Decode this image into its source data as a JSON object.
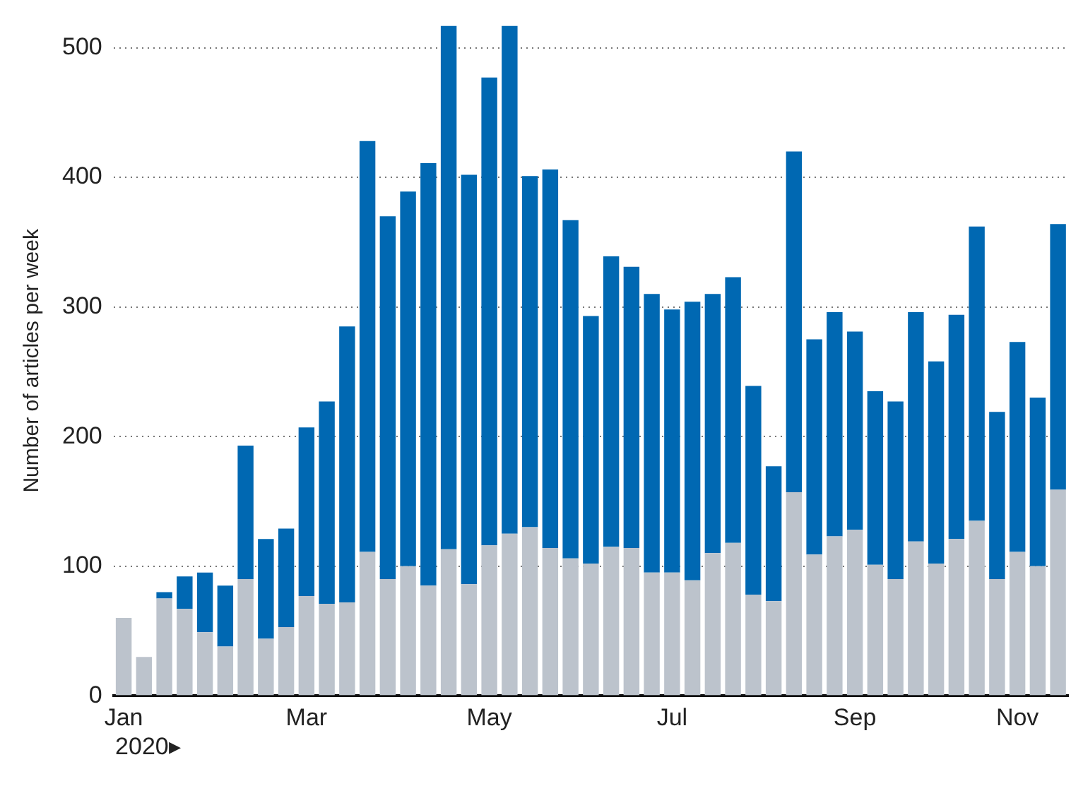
{
  "chart_data": {
    "type": "bar",
    "stacked": true,
    "ylabel": "Number of articles per week",
    "categories": [
      "Jan",
      null,
      null,
      null,
      null,
      null,
      null,
      null,
      null,
      "Mar",
      null,
      null,
      null,
      null,
      null,
      null,
      null,
      null,
      "May",
      null,
      null,
      null,
      null,
      null,
      null,
      null,
      null,
      "Jul",
      null,
      null,
      null,
      null,
      null,
      null,
      null,
      null,
      "Sep",
      null,
      null,
      null,
      null,
      null,
      null,
      null,
      "Nov",
      null,
      null
    ],
    "series": [
      {
        "color": "#bcc3cc",
        "values": [
          60,
          30,
          75,
          67,
          49,
          38,
          90,
          44,
          53,
          77,
          71,
          72,
          111,
          90,
          100,
          85,
          113,
          86,
          116,
          125,
          130,
          114,
          106,
          102,
          115,
          114,
          95,
          95,
          89,
          110,
          118,
          78,
          73,
          157,
          109,
          123,
          128,
          101,
          90,
          119,
          102,
          121,
          135,
          90,
          111,
          100,
          159
        ]
      },
      {
        "color": "#0068b2",
        "values": [
          0,
          0,
          5,
          25,
          46,
          47,
          103,
          77,
          76,
          130,
          156,
          213,
          317,
          280,
          289,
          326,
          404,
          316,
          361,
          392,
          271,
          292,
          261,
          191,
          224,
          217,
          215,
          203,
          215,
          200,
          205,
          161,
          104,
          263,
          166,
          173,
          153,
          134,
          137,
          177,
          156,
          173,
          227,
          129,
          162,
          130,
          205
        ]
      }
    ],
    "ylim": [
      0,
      517
    ],
    "yticks": [
      0,
      100,
      200,
      300,
      400,
      500
    ],
    "grid": "y",
    "annotations": [
      "2020▸"
    ]
  }
}
